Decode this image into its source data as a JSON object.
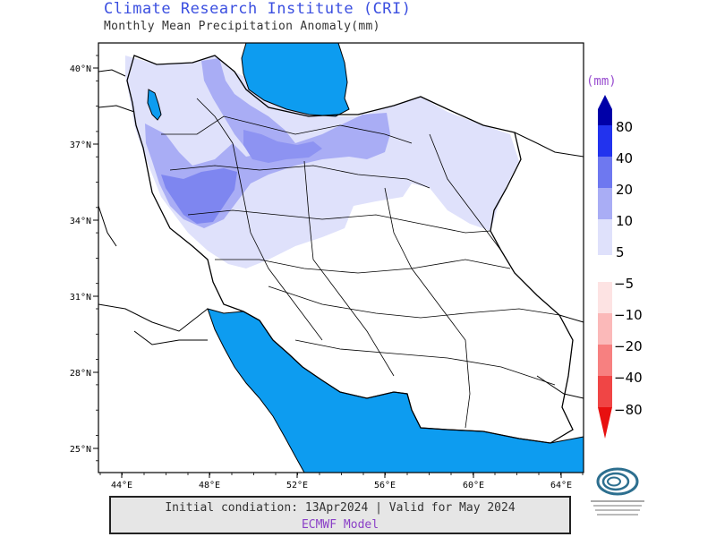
{
  "header": {
    "title": "Climate Research Institute (CRI)",
    "subtitle": "Monthly Mean Precipitation Anomaly(mm)"
  },
  "axes": {
    "lat_labels": [
      "40°N",
      "37°N",
      "34°N",
      "31°N",
      "28°N",
      "25°N"
    ],
    "lon_labels": [
      "44°E",
      "48°E",
      "52°E",
      "56°E",
      "60°E",
      "64°E"
    ]
  },
  "legend": {
    "unit": "(mm)",
    "positive": [
      {
        "label": "80",
        "color": "#0000a8"
      },
      {
        "label": "40",
        "color": "#2233ee"
      },
      {
        "label": "20",
        "color": "#6e78f0"
      },
      {
        "label": "10",
        "color": "#a9adf5"
      },
      {
        "label": "5",
        "color": "#dfe1fb"
      }
    ],
    "negative": [
      {
        "label": "−5",
        "color": "#fde3e3"
      },
      {
        "label": "−10",
        "color": "#fbb9b9"
      },
      {
        "label": "−20",
        "color": "#f78080"
      },
      {
        "label": "−40",
        "color": "#f04545"
      },
      {
        "label": "−80",
        "color": "#e81010"
      }
    ]
  },
  "colors": {
    "sea": "#0d9cf0",
    "land": "#ffffff",
    "border": "#000000"
  },
  "footer": {
    "line1": "Initial condiation: 13Apr2024 | Valid for May 2024",
    "line2": "ECMWF Model"
  }
}
